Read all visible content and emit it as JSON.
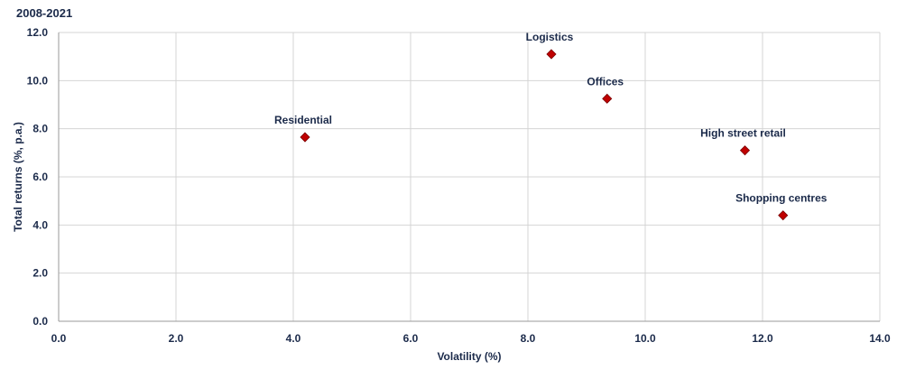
{
  "chart_data": {
    "type": "scatter",
    "title": "",
    "subtitle": "2008-2021",
    "xlabel": "Volatility (%)",
    "ylabel": "Total returns (%, p.a.)",
    "xlim": [
      0,
      14
    ],
    "ylim": [
      0,
      12
    ],
    "x_ticks": [
      "0.0",
      "2.0",
      "4.0",
      "6.0",
      "8.0",
      "10.0",
      "12.0",
      "14.0"
    ],
    "y_ticks": [
      "0.0",
      "2.0",
      "4.0",
      "6.0",
      "8.0",
      "10.0",
      "12.0"
    ],
    "grid": true,
    "marker": "diamond",
    "marker_color": "#c00000",
    "points": [
      {
        "label": "Residential",
        "x": 4.2,
        "y": 7.65
      },
      {
        "label": "Logistics",
        "x": 8.4,
        "y": 11.1
      },
      {
        "label": "Offices",
        "x": 9.35,
        "y": 9.25
      },
      {
        "label": "High street retail",
        "x": 11.7,
        "y": 7.1
      },
      {
        "label": "Shopping centres",
        "x": 12.35,
        "y": 4.4
      }
    ]
  }
}
